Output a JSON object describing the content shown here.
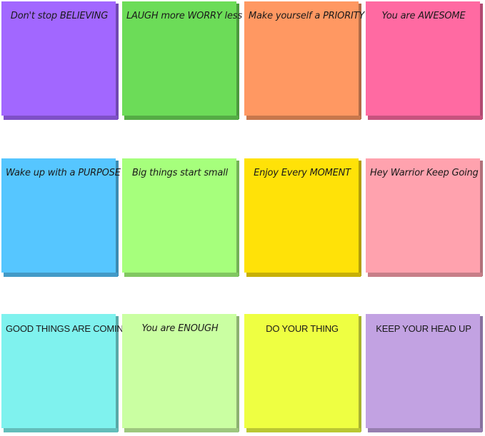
{
  "notes": [
    {
      "text": "Don't stop BELIEVING",
      "color": "#a267ff"
    },
    {
      "text": "LAUGH more WORRY less",
      "color": "#6cdc58"
    },
    {
      "text": "Make yourself a PRIORITY",
      "color": "#ff9862"
    },
    {
      "text": "You are AWESOME",
      "color": "#ff6aa2"
    },
    {
      "text": "Wake up with a PURPOSE",
      "color": "#56c6ff"
    },
    {
      "text": "Big things start small",
      "color": "#a6ff7c"
    },
    {
      "text": "Enjoy Every MOMENT",
      "color": "#ffe208"
    },
    {
      "text": "Hey Warrior Keep Going",
      "color": "#ffa2ae"
    },
    {
      "text": "GOOD THINGS ARE COMING",
      "color": "#7ff2ee"
    },
    {
      "text": "You are ENOUGH",
      "color": "#caffa2"
    },
    {
      "text": "DO YOUR THING",
      "color": "#eeff42"
    },
    {
      "text": "KEEP YOUR HEAD UP",
      "color": "#c2a2e2"
    }
  ]
}
